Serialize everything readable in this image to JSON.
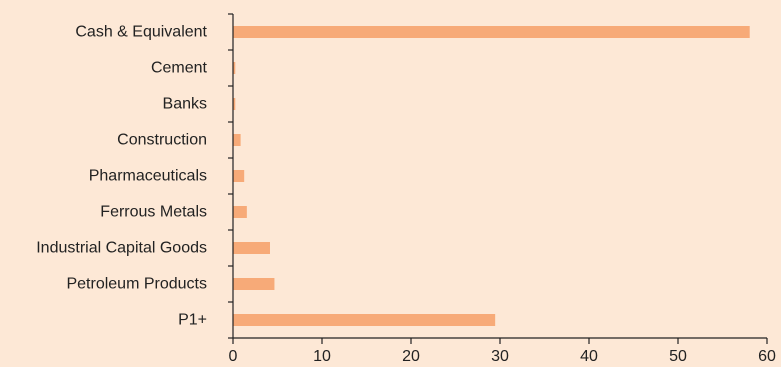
{
  "chart_data": {
    "type": "bar",
    "orientation": "horizontal",
    "categories": [
      "Cash & Equivalent",
      "Cement",
      "Banks",
      "Construction",
      "Pharmaceuticals",
      "Ferrous Metals",
      "Industrial Capital Goods",
      "Petroleum Products",
      "P1+"
    ],
    "values": [
      58.0,
      0.2,
      0.2,
      0.8,
      1.2,
      1.5,
      4.1,
      4.6,
      29.4
    ],
    "xlim": [
      0,
      60
    ],
    "xticks": [
      0,
      10,
      20,
      30,
      40,
      50,
      60
    ],
    "grid": false,
    "title": "",
    "xlabel": "",
    "ylabel": "",
    "colors": {
      "background": "#fde8d6",
      "bar": "#f7aa78",
      "axis": "#222222",
      "text": "#222222"
    }
  }
}
